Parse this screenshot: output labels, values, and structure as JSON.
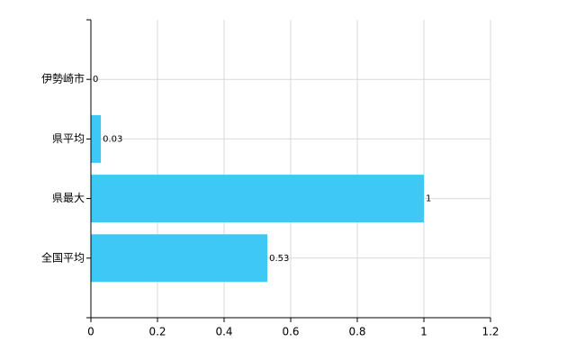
{
  "chart_data": {
    "type": "bar",
    "orientation": "horizontal",
    "categories": [
      "伊勢崎市",
      "県平均",
      "県最大",
      "全国平均"
    ],
    "values": [
      0,
      0.03,
      1,
      0.53
    ],
    "color": "#3ec8f5",
    "xlim": [
      0,
      1.2
    ],
    "xticks": [
      0,
      0.2,
      0.4,
      0.6,
      0.8,
      1,
      1.2
    ],
    "grid": true
  }
}
